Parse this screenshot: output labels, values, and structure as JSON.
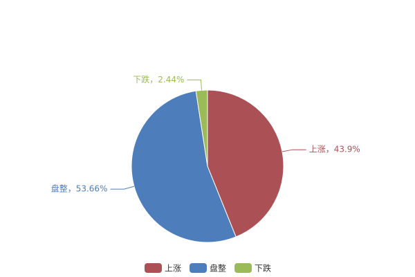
{
  "chart_data": {
    "type": "pie",
    "categories": [
      "上涨",
      "盘整",
      "下跌"
    ],
    "values": [
      43.9,
      53.66,
      2.44
    ],
    "value_labels": [
      "上涨，43.9%",
      "盘整，53.66%",
      "下跌，2.44%"
    ],
    "colors": [
      "#ab5156",
      "#4e7dbb",
      "#9bbb59"
    ],
    "legend": "bottom"
  }
}
